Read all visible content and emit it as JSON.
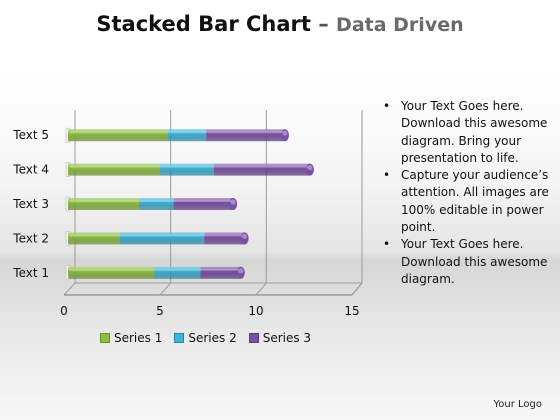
{
  "header": {
    "title": "Stacked Bar Chart",
    "dash": " – ",
    "subtitle": "Data Driven"
  },
  "bullets": [
    "Your Text Goes here. Download this awesome diagram. Bring your presentation to life.",
    "Capture your audience’s attention. All images are 100% editable in power point.",
    "Your Text Goes here. Download this awesome diagram."
  ],
  "logo": "Your Logo",
  "chart_data": {
    "type": "bar",
    "orientation": "horizontal",
    "stacked": true,
    "categories": [
      "Text 1",
      "Text 2",
      "Text 3",
      "Text 4",
      "Text 5"
    ],
    "series": [
      {
        "name": "Series 1",
        "color": "#8cbf3f",
        "values": [
          4.5,
          2.7,
          3.7,
          4.8,
          5.2
        ]
      },
      {
        "name": "Series 2",
        "color": "#3bb2d8",
        "values": [
          2.4,
          4.4,
          1.8,
          2.8,
          2.0
        ]
      },
      {
        "name": "Series 3",
        "color": "#7a4fa6",
        "values": [
          2.1,
          2.1,
          3.1,
          5.0,
          4.1
        ]
      }
    ],
    "x_ticks": [
      "0",
      "5",
      "10",
      "15"
    ],
    "xlim": [
      0,
      15
    ],
    "grid": "vertical",
    "legend": "bottom"
  }
}
